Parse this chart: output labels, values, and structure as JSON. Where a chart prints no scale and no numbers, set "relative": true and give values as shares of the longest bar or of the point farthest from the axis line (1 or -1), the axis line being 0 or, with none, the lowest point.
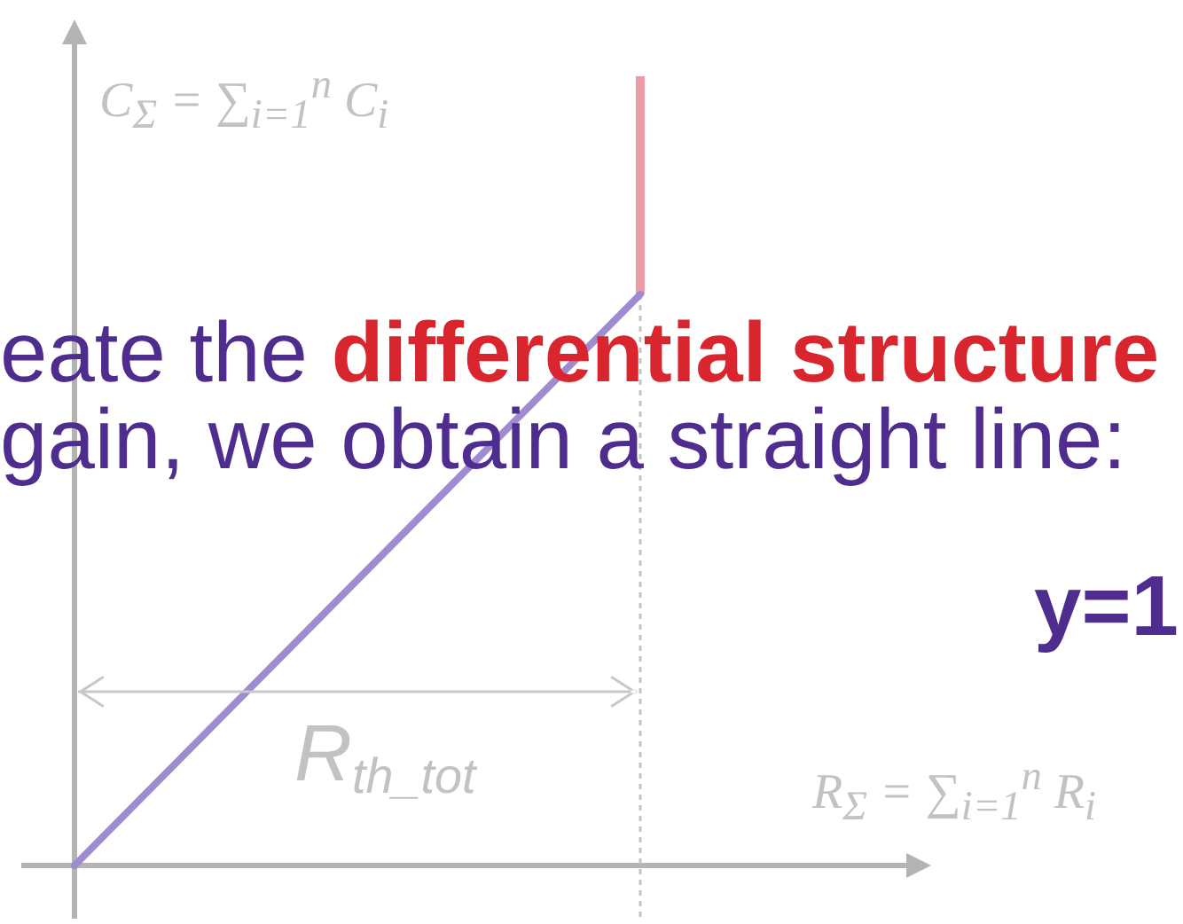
{
  "chart_data": {
    "type": "line",
    "relative": true,
    "categories": [
      null,
      null
    ],
    "series": [
      {
        "color": "#a08ad0",
        "values": [
          0,
          1
        ]
      }
    ],
    "xlabel": "R$_{Σ}$ = ∑$_{i=1}$$^{n}$ R$_{i}$",
    "ylabel": "C$_{Σ}$ = ∑$_{i=1}$$^{n}$ C$_{i}$",
    "annotations": [
      "eate the",
      "differential structure",
      "gain, we obtain a straight line:",
      "y=1",
      "R$_{th_tot}$"
    ]
  }
}
